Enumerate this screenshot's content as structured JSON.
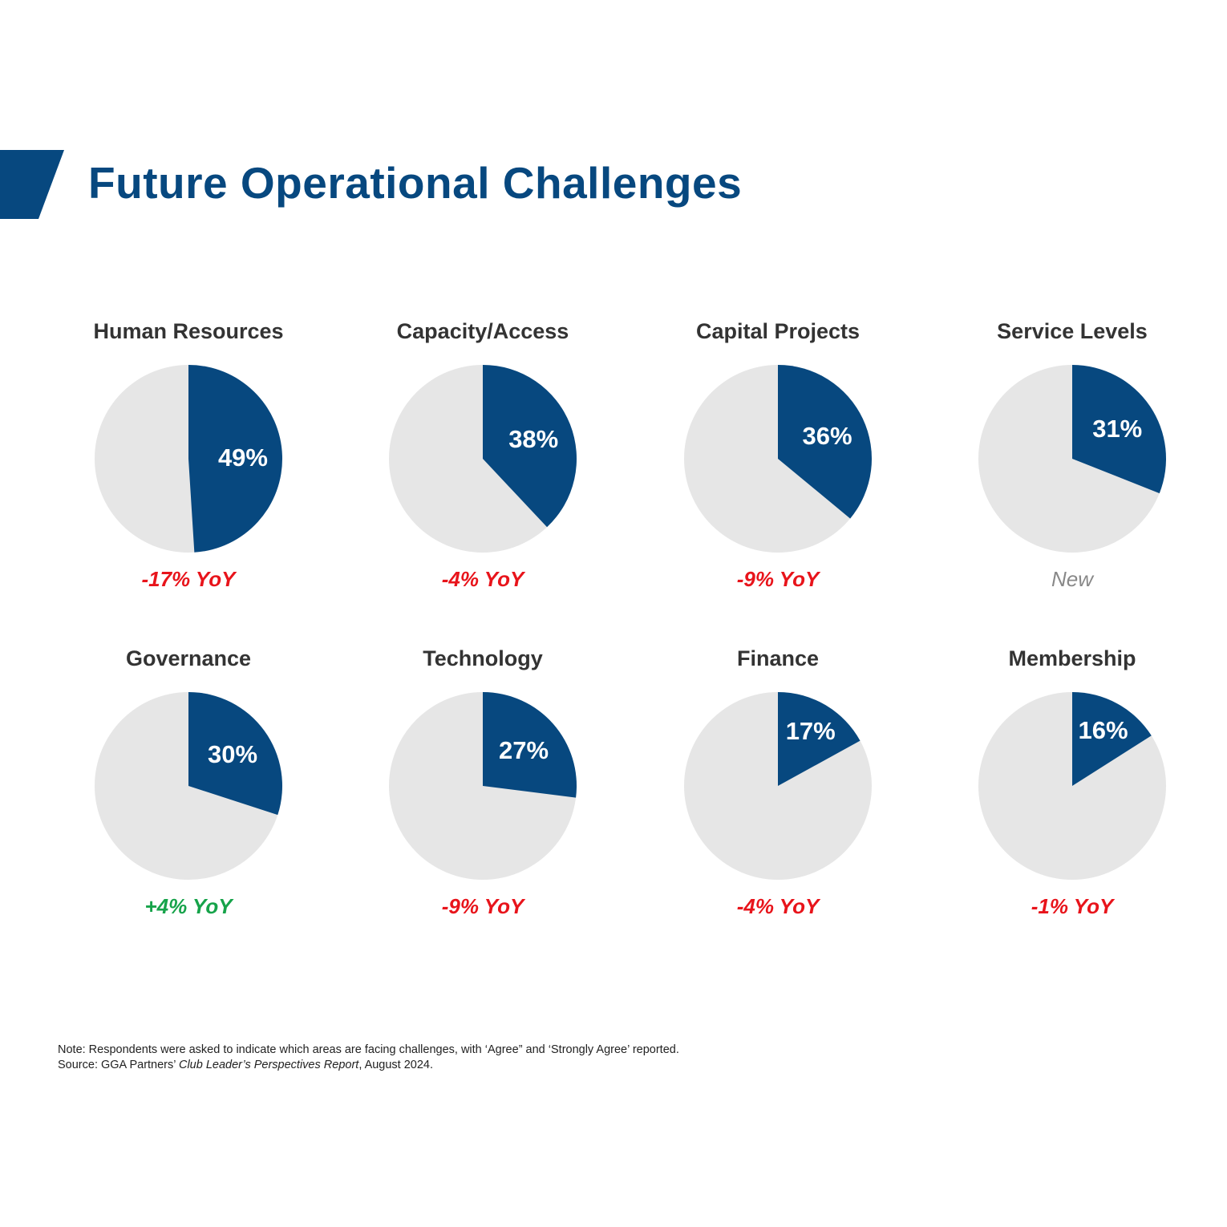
{
  "title": "Future Operational Challenges",
  "colors": {
    "primary": "#07487f",
    "rest": "#e6e6e6",
    "negative": "#e8141b",
    "positive": "#16a34a",
    "neutral": "#888888"
  },
  "chart_data": {
    "type": "pie",
    "title": "Future Operational Challenges",
    "unit": "%",
    "items": [
      {
        "name": "Human Resources",
        "value": 49,
        "label": "49%",
        "yoy": "-17% YoY",
        "trend": "negative"
      },
      {
        "name": "Capacity/Access",
        "value": 38,
        "label": "38%",
        "yoy": "-4% YoY",
        "trend": "negative"
      },
      {
        "name": "Capital Projects",
        "value": 36,
        "label": "36%",
        "yoy": "-9% YoY",
        "trend": "negative"
      },
      {
        "name": "Service Levels",
        "value": 31,
        "label": "31%",
        "yoy": "New",
        "trend": "neutral"
      },
      {
        "name": "Governance",
        "value": 30,
        "label": "30%",
        "yoy": "+4% YoY",
        "trend": "positive"
      },
      {
        "name": "Technology",
        "value": 27,
        "label": "27%",
        "yoy": "-9% YoY",
        "trend": "negative"
      },
      {
        "name": "Finance",
        "value": 17,
        "label": "17%",
        "yoy": "-4% YoY",
        "trend": "negative"
      },
      {
        "name": "Membership",
        "value": 16,
        "label": "16%",
        "yoy": "-1% YoY",
        "trend": "negative"
      }
    ]
  },
  "footnote": {
    "note": "Note: Respondents were asked to indicate which areas are facing challenges, with ‘Agree” and ‘Strongly Agree’ reported.",
    "source_prefix": "Source: GGA Partners’ ",
    "source_title": "Club Leader’s Perspectives Report",
    "source_suffix": ", August 2024."
  }
}
